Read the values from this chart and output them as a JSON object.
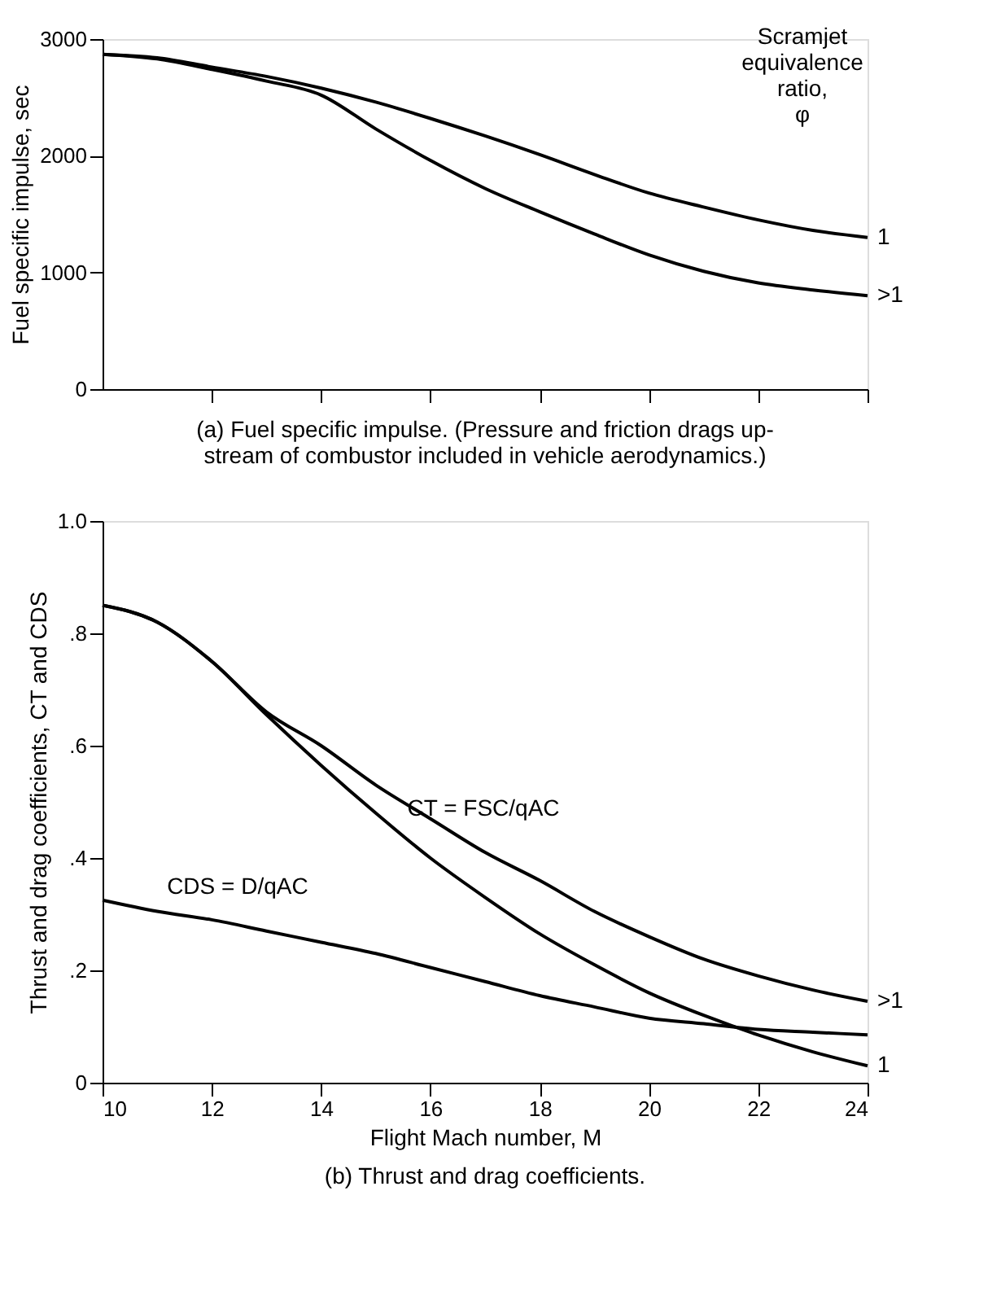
{
  "chart_data": [
    {
      "type": "line",
      "ylabel": "Fuel specific impulse, sec",
      "legend_title": "Scramjet\nequivalence\nratio,\nφ",
      "x": [
        10,
        11,
        12,
        13,
        14,
        15,
        16,
        17,
        18,
        19,
        20,
        21,
        22,
        23,
        24
      ],
      "series": [
        {
          "name": "1",
          "color": "#000000",
          "values": [
            2870,
            2840,
            2760,
            2680,
            2580,
            2460,
            2320,
            2170,
            2010,
            1840,
            1680,
            1560,
            1450,
            1360,
            1300
          ]
        },
        {
          "name": ">1",
          "color": "#000000",
          "values": [
            2870,
            2830,
            2740,
            2640,
            2520,
            2230,
            1960,
            1720,
            1520,
            1330,
            1150,
            1010,
            910,
            850,
            800
          ]
        }
      ],
      "xlim": [
        10,
        24
      ],
      "xticks": [
        {
          "value": 12,
          "label": null
        },
        {
          "value": 14,
          "label": null
        },
        {
          "value": 16,
          "label": null
        },
        {
          "value": 18,
          "label": null
        },
        {
          "value": 20,
          "label": null
        },
        {
          "value": 22,
          "label": null
        },
        {
          "value": 24,
          "label": null
        }
      ],
      "ylim": [
        0,
        3000
      ],
      "yticks": [
        0,
        1000,
        2000,
        3000
      ],
      "tick_labels": "y",
      "grid": false,
      "annotations": [
        "(a) Fuel specific impulse.  (Pressure and friction drags up-\nstream of combustor included in vehicle aerodynamics.)"
      ]
    },
    {
      "type": "line",
      "xlabel": "Flight Mach number, M",
      "ylabel": "Thrust and drag coefficients, CT and CDS",
      "x": [
        10,
        11,
        12,
        13,
        14,
        15,
        16,
        17,
        18,
        19,
        20,
        21,
        22,
        23,
        24
      ],
      "series": [
        {
          "name": ">1",
          "color": "#000000",
          "values": [
            0.85,
            0.82,
            0.75,
            0.66,
            0.6,
            0.53,
            0.47,
            0.41,
            0.36,
            0.305,
            0.26,
            0.22,
            0.19,
            0.165,
            0.145
          ]
        },
        {
          "name": "1",
          "color": "#000000",
          "values": [
            0.85,
            0.82,
            0.75,
            0.655,
            0.565,
            0.48,
            0.4,
            0.33,
            0.265,
            0.21,
            0.16,
            0.12,
            0.085,
            0.055,
            0.03
          ]
        },
        {
          "color": "#000000",
          "values": [
            0.325,
            0.305,
            0.29,
            0.27,
            0.25,
            0.23,
            0.205,
            0.18,
            0.155,
            0.135,
            0.115,
            0.105,
            0.095,
            0.09,
            0.085
          ]
        }
      ],
      "xlim": [
        10,
        24
      ],
      "xticks": [
        10,
        12,
        14,
        16,
        18,
        20,
        22,
        24
      ],
      "ylim": [
        0,
        1.0
      ],
      "yticks": [
        0,
        {
          "value": 0.2,
          "label": ".2"
        },
        {
          "value": 0.4,
          "label": ".4"
        },
        {
          "value": 0.6,
          "label": ".6"
        },
        {
          "value": 0.8,
          "label": ".8"
        },
        {
          "value": 1.0,
          "label": "1.0"
        }
      ],
      "grid": false,
      "annotations": [
        {
          "text": "CT = FSC/qAC",
          "x": 15.4,
          "y": 0.45
        },
        {
          "text": "CDS = D/qAC",
          "x": 11,
          "y": 0.31
        },
        "(b) Thrust and drag coefficients."
      ]
    }
  ]
}
